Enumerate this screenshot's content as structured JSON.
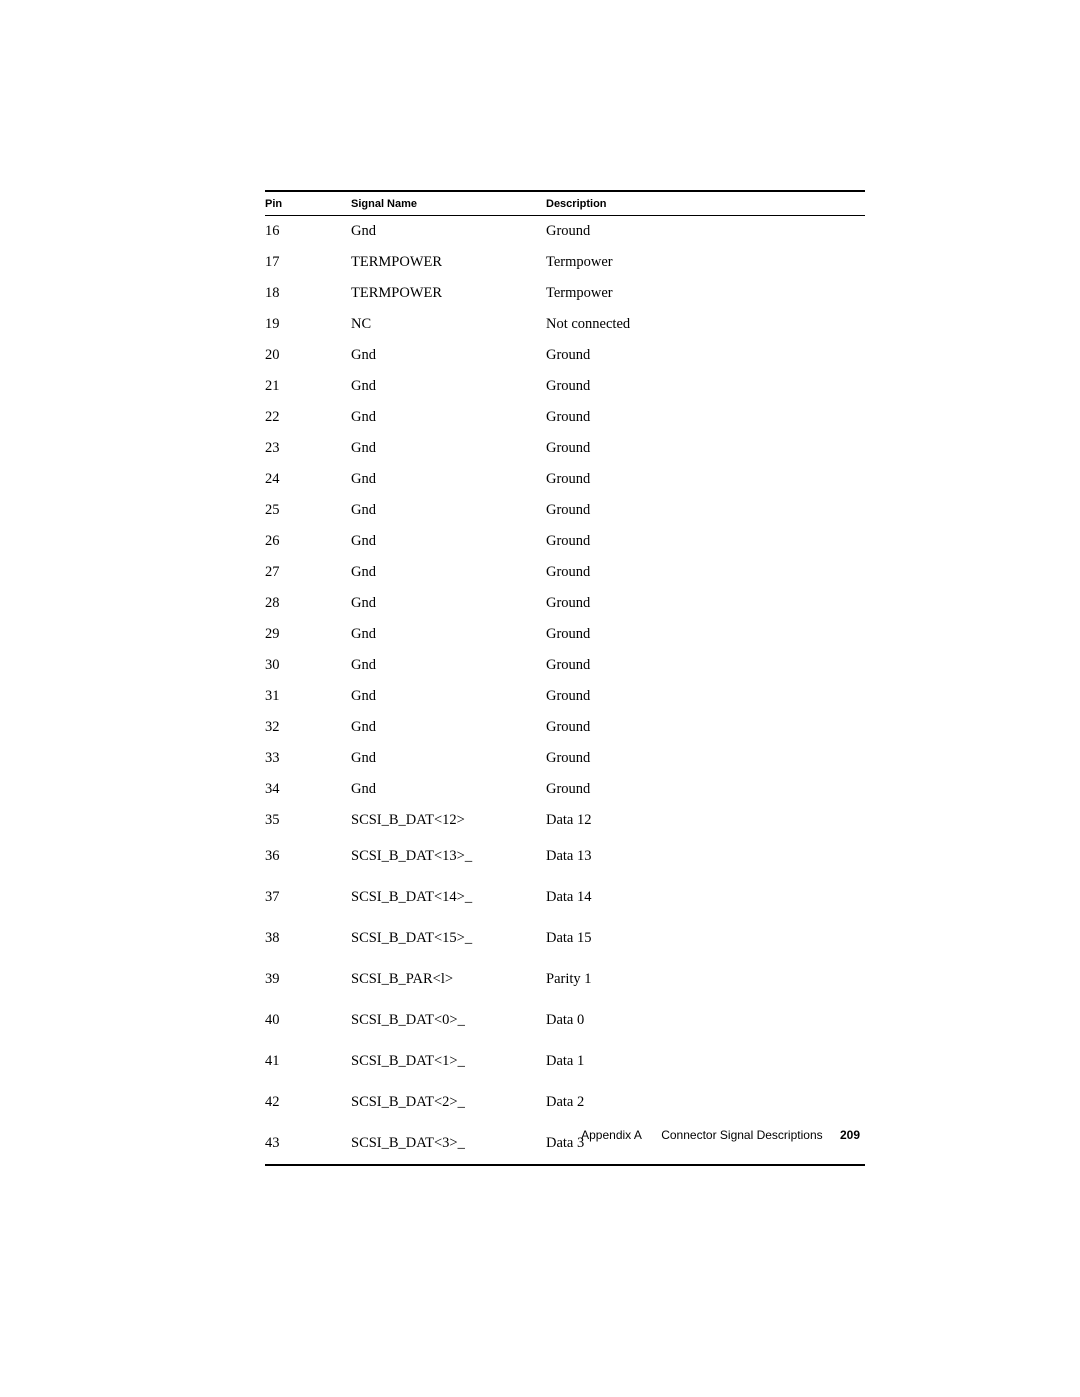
{
  "table": {
    "columns": {
      "pin": "Pin",
      "signal": "Signal Name",
      "desc": "Description"
    },
    "rows": [
      {
        "pin": "16",
        "signal": "Gnd",
        "desc": "Ground",
        "tall": false
      },
      {
        "pin": "17",
        "signal": "TERMPOWER",
        "desc": "Termpower",
        "tall": false
      },
      {
        "pin": "18",
        "signal": "TERMPOWER",
        "desc": "Termpower",
        "tall": false
      },
      {
        "pin": "19",
        "signal": "NC",
        "desc": "Not connected",
        "tall": false
      },
      {
        "pin": "20",
        "signal": "Gnd",
        "desc": "Ground",
        "tall": false
      },
      {
        "pin": "21",
        "signal": "Gnd",
        "desc": "Ground",
        "tall": false
      },
      {
        "pin": "22",
        "signal": "Gnd",
        "desc": "Ground",
        "tall": false
      },
      {
        "pin": "23",
        "signal": "Gnd",
        "desc": "Ground",
        "tall": false
      },
      {
        "pin": "24",
        "signal": "Gnd",
        "desc": "Ground",
        "tall": false
      },
      {
        "pin": "25",
        "signal": "Gnd",
        "desc": "Ground",
        "tall": false
      },
      {
        "pin": "26",
        "signal": "Gnd",
        "desc": "Ground",
        "tall": false
      },
      {
        "pin": "27",
        "signal": "Gnd",
        "desc": "Ground",
        "tall": false
      },
      {
        "pin": "28",
        "signal": "Gnd",
        "desc": "Ground",
        "tall": false
      },
      {
        "pin": "29",
        "signal": "Gnd",
        "desc": "Ground",
        "tall": false
      },
      {
        "pin": "30",
        "signal": "Gnd",
        "desc": "Ground",
        "tall": false
      },
      {
        "pin": "31",
        "signal": "Gnd",
        "desc": "Ground",
        "tall": false
      },
      {
        "pin": "32",
        "signal": "Gnd",
        "desc": "Ground",
        "tall": false
      },
      {
        "pin": "33",
        "signal": "Gnd",
        "desc": "Ground",
        "tall": false
      },
      {
        "pin": "34",
        "signal": "Gnd",
        "desc": "Ground",
        "tall": false
      },
      {
        "pin": "35",
        "signal": "SCSI_B_DAT<12>",
        "desc": "Data 12",
        "tall": false
      },
      {
        "pin": "36",
        "signal": "SCSI_B_DAT<13>_",
        "desc": "Data 13",
        "tall": true
      },
      {
        "pin": "37",
        "signal": "SCSI_B_DAT<14>_",
        "desc": "Data 14",
        "tall": true
      },
      {
        "pin": "38",
        "signal": "SCSI_B_DAT<15>_",
        "desc": "Data 15",
        "tall": true
      },
      {
        "pin": "39",
        "signal": "SCSI_B_PAR<l>",
        "desc": "Parity 1",
        "tall": true
      },
      {
        "pin": "40",
        "signal": "SCSI_B_DAT<0>_",
        "desc": "Data 0",
        "tall": true
      },
      {
        "pin": "41",
        "signal": "SCSI_B_DAT<1>_",
        "desc": "Data 1",
        "tall": true
      },
      {
        "pin": "42",
        "signal": "SCSI_B_DAT<2>_",
        "desc": "Data 2",
        "tall": true
      },
      {
        "pin": "43",
        "signal": "SCSI_B_DAT<3>_",
        "desc": "Data 3",
        "tall": true
      }
    ]
  },
  "footer": {
    "appendix": "Appendix A",
    "title": "Connector Signal Descriptions",
    "page": "209"
  }
}
